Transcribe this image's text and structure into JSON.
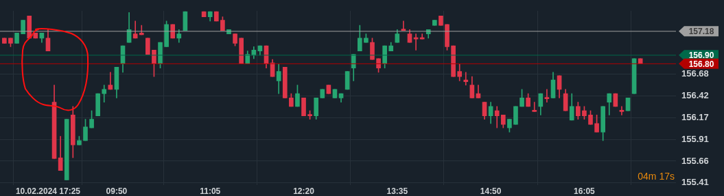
{
  "chart_data": {
    "type": "candlestick",
    "categories": [
      null,
      null,
      null,
      null,
      null,
      null,
      null,
      "10.02.2024 17:25",
      null,
      null,
      null,
      null,
      null,
      null,
      null,
      null,
      null,
      null,
      "09:50",
      null,
      null,
      null,
      null,
      null,
      null,
      null,
      null,
      null,
      null,
      null,
      null,
      null,
      null,
      "11:05",
      null,
      null,
      null,
      null,
      null,
      null,
      null,
      null,
      null,
      null,
      null,
      null,
      null,
      null,
      "12:20",
      null,
      null,
      null,
      null,
      null,
      null,
      null,
      null,
      null,
      null,
      null,
      null,
      null,
      null,
      "13:35",
      null,
      null,
      null,
      null,
      null,
      null,
      null,
      null,
      null,
      null,
      null,
      null,
      null,
      null,
      "14:50",
      null,
      null,
      null,
      null,
      null,
      null,
      null,
      null,
      null,
      null,
      null,
      null,
      null,
      null,
      "16:05",
      null,
      null,
      null,
      null,
      null,
      null,
      null,
      null,
      null
    ],
    "ohlc": [
      [
        157.1,
        157.1,
        157.04,
        157.04
      ],
      [
        157.1,
        157.1,
        157.0,
        157.04
      ],
      [
        157.04,
        157.16,
        157.04,
        157.16
      ],
      [
        157.15,
        157.31,
        157.15,
        157.31
      ],
      [
        157.36,
        157.36,
        157.1,
        157.1
      ],
      [
        157.16,
        157.16,
        157.1,
        157.1
      ],
      [
        157.1,
        157.16,
        157.05,
        157.16
      ],
      [
        157.1,
        157.2,
        156.95,
        156.95
      ],
      [
        156.35,
        156.55,
        155.69,
        155.69
      ],
      [
        155.7,
        155.95,
        155.55,
        155.55
      ],
      [
        155.44,
        156.15,
        155.44,
        156.15
      ],
      [
        156.2,
        156.3,
        155.7,
        155.85
      ],
      [
        155.85,
        155.95,
        155.85,
        155.9
      ],
      [
        155.9,
        156.15,
        155.9,
        156.06
      ],
      [
        156.05,
        156.25,
        156.05,
        156.15
      ],
      [
        156.19,
        156.45,
        156.19,
        156.45
      ],
      [
        156.45,
        156.55,
        156.35,
        156.5
      ],
      [
        156.55,
        156.7,
        156.5,
        156.5
      ],
      [
        156.5,
        156.76,
        156.4,
        156.76
      ],
      [
        156.8,
        157.01,
        156.7,
        157.01
      ],
      [
        157.05,
        157.4,
        157.05,
        157.2
      ],
      [
        157.15,
        157.3,
        157.1,
        157.1
      ],
      [
        157.16,
        157.25,
        157.14,
        157.14
      ],
      [
        157.1,
        157.1,
        156.91,
        156.91
      ],
      [
        156.96,
        156.96,
        156.65,
        156.8
      ],
      [
        156.8,
        157.05,
        156.75,
        157.05
      ],
      [
        157.0,
        157.3,
        157.0,
        157.26
      ],
      [
        157.26,
        157.26,
        157.1,
        157.1
      ],
      [
        157.1,
        157.2,
        157.05,
        157.15
      ],
      [
        157.19,
        157.41,
        157.19,
        157.41
      ],
      null,
      null,
      [
        157.41,
        157.41,
        157.35,
        157.35
      ],
      [
        157.35,
        157.41,
        157.3,
        157.41
      ],
      [
        157.41,
        157.41,
        157.3,
        157.3
      ],
      [
        157.31,
        157.35,
        157.19,
        157.19
      ],
      [
        157.15,
        157.2,
        157.15,
        157.2
      ],
      [
        157.15,
        157.15,
        157.01,
        157.04
      ],
      [
        157.1,
        157.1,
        156.8,
        156.8
      ],
      [
        156.8,
        156.95,
        156.8,
        156.91
      ],
      [
        156.9,
        157.0,
        156.86,
        156.96
      ],
      [
        156.95,
        157.01,
        156.9,
        157.01
      ],
      [
        157.01,
        157.01,
        156.75,
        156.8
      ],
      [
        156.81,
        156.85,
        156.65,
        156.65
      ],
      [
        156.6,
        156.8,
        156.45,
        156.71
      ],
      [
        156.76,
        156.76,
        156.4,
        156.4
      ],
      [
        156.4,
        156.45,
        156.3,
        156.3
      ],
      [
        156.3,
        156.55,
        156.3,
        156.45
      ],
      [
        156.4,
        156.4,
        156.19,
        156.19
      ],
      [
        156.2,
        156.25,
        156.15,
        156.19
      ],
      [
        156.19,
        156.4,
        156.15,
        156.4
      ],
      [
        156.4,
        156.5,
        156.4,
        156.5
      ],
      [
        156.55,
        156.55,
        156.45,
        156.45
      ],
      [
        156.4,
        156.5,
        156.4,
        156.5
      ],
      [
        156.4,
        156.45,
        156.35,
        156.45
      ],
      [
        156.5,
        156.71,
        156.5,
        156.71
      ],
      [
        156.75,
        156.91,
        156.6,
        156.91
      ],
      [
        156.95,
        157.25,
        156.95,
        157.1
      ],
      [
        157.05,
        157.15,
        157.05,
        157.1
      ],
      [
        157.05,
        157.1,
        156.85,
        156.85
      ],
      [
        156.86,
        156.86,
        156.7,
        156.75
      ],
      [
        156.8,
        157.01,
        156.75,
        157.01
      ],
      [
        156.95,
        157.05,
        156.95,
        157.01
      ],
      [
        157.05,
        157.2,
        157.05,
        157.15
      ],
      [
        157.2,
        157.3,
        157.19,
        157.19
      ],
      [
        157.15,
        157.2,
        157.05,
        157.05
      ],
      [
        157.1,
        157.15,
        156.96,
        157.09
      ],
      [
        157.1,
        157.15,
        157.09,
        157.09
      ],
      [
        157.15,
        157.2,
        157.1,
        157.2
      ],
      [
        157.25,
        157.31,
        157.25,
        157.31
      ],
      [
        157.36,
        157.36,
        157.25,
        157.25
      ],
      [
        157.26,
        157.26,
        156.96,
        157.0
      ],
      [
        157.01,
        157.01,
        156.65,
        156.65
      ],
      [
        156.71,
        156.8,
        156.6,
        156.65
      ],
      [
        156.61,
        156.7,
        156.55,
        156.59
      ],
      [
        156.55,
        156.65,
        156.4,
        156.4
      ],
      [
        156.45,
        156.55,
        156.4,
        156.4
      ],
      [
        156.35,
        156.35,
        156.15,
        156.19
      ],
      [
        156.19,
        156.35,
        156.1,
        156.3
      ],
      [
        156.25,
        156.3,
        156.05,
        156.19
      ],
      [
        156.2,
        156.2,
        156.05,
        156.09
      ],
      [
        156.05,
        156.15,
        156.0,
        156.15
      ],
      [
        156.09,
        156.3,
        156.09,
        156.3
      ],
      [
        156.3,
        156.5,
        156.3,
        156.4
      ],
      [
        156.4,
        156.45,
        156.3,
        156.3
      ],
      [
        156.25,
        156.35,
        156.24,
        156.24
      ],
      [
        156.3,
        156.45,
        156.2,
        156.45
      ],
      [
        156.4,
        156.5,
        156.35,
        156.39
      ],
      [
        156.4,
        156.7,
        156.4,
        156.61
      ],
      [
        156.66,
        156.66,
        156.4,
        156.5
      ],
      [
        156.45,
        156.5,
        156.25,
        156.25
      ],
      [
        156.14,
        156.45,
        156.14,
        156.3
      ],
      [
        156.3,
        156.35,
        156.15,
        156.19
      ],
      [
        156.25,
        156.3,
        156.15,
        156.19
      ],
      [
        156.2,
        156.25,
        156.09,
        156.09
      ],
      [
        156.1,
        156.2,
        156.0,
        156.0
      ],
      [
        156.0,
        156.3,
        155.9,
        156.3
      ],
      [
        156.35,
        156.45,
        156.2,
        156.45
      ],
      [
        156.45,
        156.45,
        156.3,
        156.3
      ],
      [
        156.25,
        156.3,
        156.2,
        156.24
      ],
      [
        156.25,
        156.4,
        156.25,
        156.4
      ],
      [
        156.45,
        156.86,
        156.45,
        156.86
      ],
      [
        156.86,
        156.86,
        156.8,
        156.8
      ]
    ],
    "colors": [
      "#e0364a",
      "#e0364a",
      "#26a671",
      "#26a671",
      "#e0364a",
      "#e0364a",
      "#26a671",
      "#e0364a",
      "#e0364a",
      "#e0364a",
      "#26a671",
      "#e0364a",
      "#26a671",
      "#26a671",
      "#26a671",
      "#26a671",
      "#26a671",
      "#e0364a",
      "#26a671",
      "#26a671",
      "#26a671",
      "#e0364a",
      "#e0364a",
      "#e0364a",
      "#e0364a",
      "#26a671",
      "#26a671",
      "#e0364a",
      "#26a671",
      "#26a671",
      null,
      null,
      "#e0364a",
      "#26a671",
      "#e0364a",
      "#e0364a",
      "#26a671",
      "#e0364a",
      "#e0364a",
      "#26a671",
      "#26a671",
      "#26a671",
      "#e0364a",
      "#e0364a",
      "#26a671",
      "#e0364a",
      "#e0364a",
      "#26a671",
      "#e0364a",
      "#e0364a",
      "#26a671",
      "#26a671",
      "#e0364a",
      "#26a671",
      "#26a671",
      "#26a671",
      "#26a671",
      "#26a671",
      "#26a671",
      "#e0364a",
      "#e0364a",
      "#26a671",
      "#26a671",
      "#26a671",
      "#e0364a",
      "#e0364a",
      "#e0364a",
      "#e0364a",
      "#26a671",
      "#26a671",
      "#e0364a",
      "#e0364a",
      "#e0364a",
      "#e0364a",
      "#e0364a",
      "#e0364a",
      "#e0364a",
      "#e0364a",
      "#26a671",
      "#e0364a",
      "#e0364a",
      "#26a671",
      "#26a671",
      "#26a671",
      "#e0364a",
      "#e0364a",
      "#26a671",
      "#e0364a",
      "#26a671",
      "#e0364a",
      "#e0364a",
      "#26a671",
      "#e0364a",
      "#e0364a",
      "#e0364a",
      "#e0364a",
      "#26a671",
      "#26a671",
      "#e0364a",
      "#e0364a",
      "#26a671",
      "#26a671",
      "#e0364a"
    ],
    "ylim": [
      155.38,
      157.42
    ],
    "yticks": [
      155.41,
      155.66,
      155.91,
      156.17,
      156.42,
      156.68
    ],
    "grid": true,
    "ref_lines": [
      {
        "axis": "y",
        "value": 157.18,
        "label": "157.18",
        "color": "#a0a0a0"
      },
      {
        "axis": "y",
        "value": 156.9,
        "label": "156.90",
        "color": "#00694a"
      },
      {
        "axis": "y",
        "value": 156.8,
        "label": "156.80",
        "color": "#b30000"
      }
    ],
    "annotations": [
      "04m 17s"
    ]
  }
}
